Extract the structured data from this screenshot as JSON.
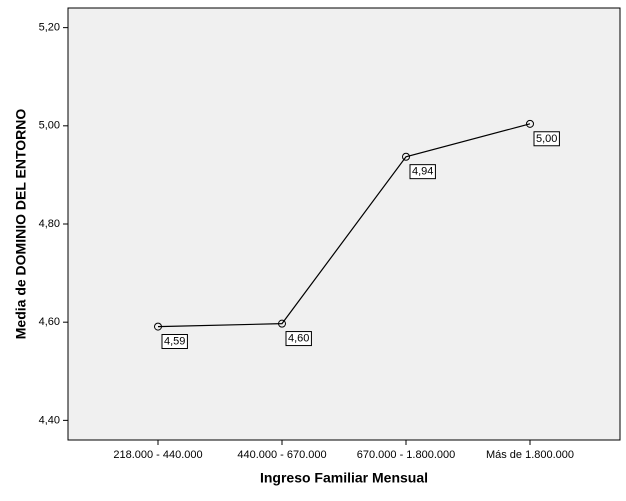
{
  "chart_data": {
    "type": "line",
    "y_label": "Media de DOMINIO DEL ENTORNO",
    "x_label": "Ingreso Familiar Mensual",
    "categories": [
      "218.000 - 440.000",
      "440.000 - 670.000",
      "670.000 - 1.800.000",
      "Más de 1.800.000"
    ],
    "values": [
      4.591,
      4.597,
      4.937,
      5.004
    ],
    "value_labels": [
      "4,59",
      "4,60",
      "4,94",
      "5,00"
    ],
    "color": "#000000",
    "ylim": [
      4.36,
      5.24
    ],
    "yticks": [
      {
        "value": 4.4,
        "label": "4,40"
      },
      {
        "value": 4.6,
        "label": "4,60"
      },
      {
        "value": 4.8,
        "label": "4,80"
      },
      {
        "value": 5.0,
        "label": "5,00"
      },
      {
        "value": 5.2,
        "label": "5,20"
      }
    ],
    "grid": false
  }
}
